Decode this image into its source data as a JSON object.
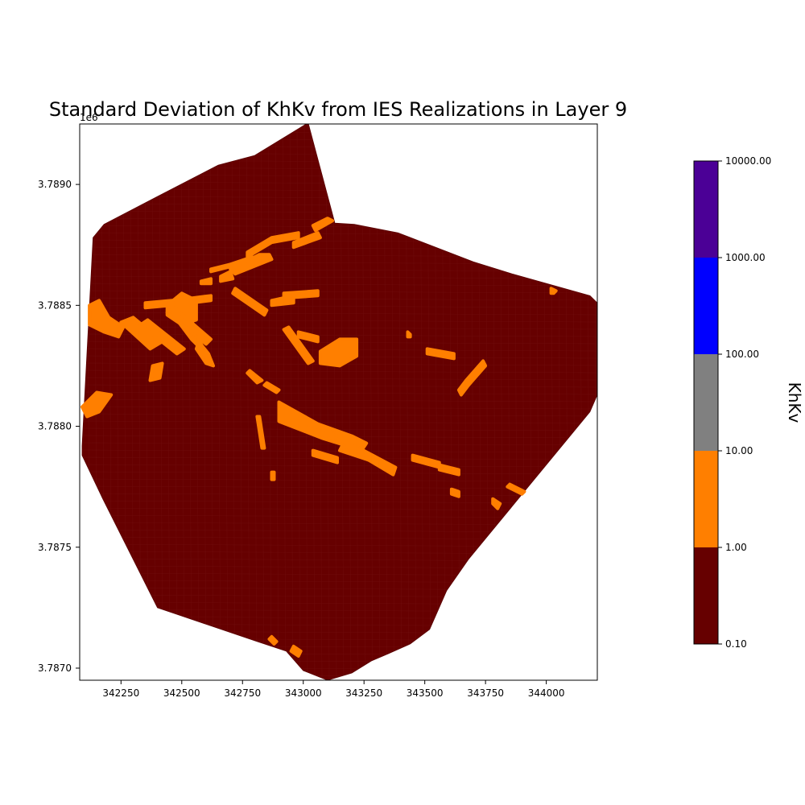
{
  "chart_data": {
    "type": "heatmap",
    "title": "Standard Deviation of KhKv from IES Realizations in Layer 9",
    "xlabel": "",
    "ylabel": "",
    "y_offset_label": "1e6",
    "xlim": [
      342080,
      344210
    ],
    "ylim": [
      3786950,
      3789250
    ],
    "x_ticks": [
      "342250",
      "342500",
      "342750",
      "343000",
      "343250",
      "343500",
      "343750",
      "344000"
    ],
    "x_tick_values": [
      342250,
      342500,
      342750,
      343000,
      343250,
      343500,
      343750,
      344000
    ],
    "y_ticks": [
      "3.7870",
      "3.7875",
      "3.7880",
      "3.7885",
      "3.7890"
    ],
    "y_tick_values": [
      3787000,
      3787500,
      3788000,
      3788500,
      3789000
    ],
    "colorbar": {
      "label": "KhKv",
      "tick_labels": [
        "0.10",
        "1.00",
        "10.00",
        "100.00",
        "1000.00",
        "10000.00"
      ],
      "bins": [
        {
          "from": 0.1,
          "to": 1,
          "color": "#660000"
        },
        {
          "from": 1,
          "to": 10,
          "color": "#ff7f00"
        },
        {
          "from": 10,
          "to": 100,
          "color": "#808080"
        },
        {
          "from": 100,
          "to": 1000,
          "color": "#0000ff"
        },
        {
          "from": 1000,
          "to": 10000,
          "color": "#4b0096"
        }
      ]
    },
    "domain_outline": [
      [
        342090,
        3787880
      ],
      [
        342090,
        3787920
      ],
      [
        342135,
        3788780
      ],
      [
        342180,
        3788835
      ],
      [
        342400,
        3788950
      ],
      [
        342650,
        3789080
      ],
      [
        342800,
        3789120
      ],
      [
        342980,
        3789230
      ],
      [
        343020,
        3789255
      ],
      [
        343130,
        3788840
      ],
      [
        343210,
        3788835
      ],
      [
        343390,
        3788800
      ],
      [
        343700,
        3788680
      ],
      [
        343860,
        3788630
      ],
      [
        344180,
        3788540
      ],
      [
        344210,
        3788510
      ],
      [
        344210,
        3788130
      ],
      [
        344180,
        3788060
      ],
      [
        343680,
        3787450
      ],
      [
        343590,
        3787320
      ],
      [
        343520,
        3787160
      ],
      [
        343440,
        3787100
      ],
      [
        343350,
        3787060
      ],
      [
        343280,
        3787030
      ],
      [
        343200,
        3786980
      ],
      [
        343100,
        3786950
      ],
      [
        343000,
        3786990
      ],
      [
        342930,
        3787070
      ],
      [
        342810,
        3787110
      ],
      [
        342400,
        3787250
      ],
      [
        342175,
        3787700
      ]
    ],
    "background_value_bin": "0.10–1.00",
    "high_value_bin": "1.00–10.00",
    "high_value_zones": [
      [
        [
          342120,
          3788500
        ],
        [
          342160,
          3788520
        ],
        [
          342200,
          3788450
        ],
        [
          342260,
          3788410
        ],
        [
          342240,
          3788370
        ],
        [
          342180,
          3788390
        ],
        [
          342120,
          3788420
        ]
      ],
      [
        [
          342250,
          3788430
        ],
        [
          342370,
          3788320
        ],
        [
          342420,
          3788350
        ],
        [
          342300,
          3788450
        ]
      ],
      [
        [
          342330,
          3788420
        ],
        [
          342480,
          3788300
        ],
        [
          342510,
          3788320
        ],
        [
          342360,
          3788440
        ]
      ],
      [
        [
          342350,
          3788510
        ],
        [
          342460,
          3788520
        ],
        [
          342460,
          3788500
        ],
        [
          342350,
          3788490
        ]
      ],
      [
        [
          342440,
          3788500
        ],
        [
          342500,
          3788550
        ],
        [
          342560,
          3788520
        ],
        [
          342560,
          3788440
        ],
        [
          342500,
          3788420
        ],
        [
          342440,
          3788460
        ]
      ],
      [
        [
          342540,
          3788530
        ],
        [
          342620,
          3788540
        ],
        [
          342620,
          3788520
        ],
        [
          342540,
          3788510
        ]
      ],
      [
        [
          342480,
          3788440
        ],
        [
          342540,
          3788360
        ],
        [
          342580,
          3788320
        ],
        [
          342600,
          3788300
        ],
        [
          342560,
          3788380
        ],
        [
          342510,
          3788450
        ]
      ],
      [
        [
          342570,
          3788350
        ],
        [
          342610,
          3788300
        ],
        [
          342630,
          3788250
        ],
        [
          342600,
          3788260
        ],
        [
          342560,
          3788320
        ]
      ],
      [
        [
          342440,
          3788470
        ],
        [
          342600,
          3788340
        ],
        [
          342620,
          3788360
        ],
        [
          342470,
          3788490
        ]
      ],
      [
        [
          342380,
          3788250
        ],
        [
          342420,
          3788260
        ],
        [
          342410,
          3788200
        ],
        [
          342370,
          3788190
        ]
      ],
      [
        [
          342090,
          3788080
        ],
        [
          342150,
          3788140
        ],
        [
          342210,
          3788130
        ],
        [
          342160,
          3788060
        ],
        [
          342110,
          3788040
        ]
      ],
      [
        [
          342580,
          3788600
        ],
        [
          342620,
          3788610
        ],
        [
          342620,
          3788590
        ],
        [
          342580,
          3788590
        ]
      ],
      [
        [
          342660,
          3788620
        ],
        [
          342700,
          3788640
        ],
        [
          342710,
          3788610
        ],
        [
          342660,
          3788600
        ]
      ],
      [
        [
          342620,
          3788650
        ],
        [
          342700,
          3788670
        ],
        [
          342790,
          3788700
        ],
        [
          342780,
          3788680
        ],
        [
          342620,
          3788640
        ]
      ],
      [
        [
          342770,
          3788720
        ],
        [
          342870,
          3788780
        ],
        [
          342980,
          3788800
        ],
        [
          342980,
          3788780
        ],
        [
          342870,
          3788760
        ],
        [
          342770,
          3788700
        ]
      ],
      [
        [
          342700,
          3788650
        ],
        [
          342820,
          3788710
        ],
        [
          342860,
          3788710
        ],
        [
          342870,
          3788690
        ],
        [
          342720,
          3788630
        ]
      ],
      [
        [
          343040,
          3788830
        ],
        [
          343100,
          3788860
        ],
        [
          343120,
          3788850
        ],
        [
          343050,
          3788810
        ]
      ],
      [
        [
          342960,
          3788760
        ],
        [
          343060,
          3788800
        ],
        [
          343070,
          3788780
        ],
        [
          342960,
          3788740
        ]
      ],
      [
        [
          342920,
          3788550
        ],
        [
          343060,
          3788560
        ],
        [
          343060,
          3788540
        ],
        [
          342920,
          3788530
        ]
      ],
      [
        [
          342870,
          3788520
        ],
        [
          342960,
          3788540
        ],
        [
          342960,
          3788510
        ],
        [
          342870,
          3788500
        ]
      ],
      [
        [
          342710,
          3788550
        ],
        [
          342840,
          3788460
        ],
        [
          342850,
          3788480
        ],
        [
          342720,
          3788570
        ]
      ],
      [
        [
          342920,
          3788400
        ],
        [
          343020,
          3788260
        ],
        [
          343040,
          3788270
        ],
        [
          342940,
          3788410
        ]
      ],
      [
        [
          342980,
          3788390
        ],
        [
          343060,
          3788370
        ],
        [
          343060,
          3788350
        ],
        [
          342980,
          3788370
        ]
      ],
      [
        [
          343070,
          3788310
        ],
        [
          343150,
          3788360
        ],
        [
          343220,
          3788360
        ],
        [
          343220,
          3788290
        ],
        [
          343150,
          3788250
        ],
        [
          343070,
          3788260
        ]
      ],
      [
        [
          342780,
          3788230
        ],
        [
          342830,
          3788190
        ],
        [
          342810,
          3788180
        ],
        [
          342770,
          3788220
        ]
      ],
      [
        [
          342850,
          3788180
        ],
        [
          342900,
          3788150
        ],
        [
          342890,
          3788140
        ],
        [
          342840,
          3788170
        ]
      ],
      [
        [
          342870,
          3787810
        ],
        [
          342880,
          3787810
        ],
        [
          342880,
          3787780
        ],
        [
          342870,
          3787780
        ]
      ],
      [
        [
          342820,
          3788040
        ],
        [
          342840,
          3787910
        ],
        [
          342830,
          3787910
        ],
        [
          342810,
          3788040
        ]
      ],
      [
        [
          342900,
          3788100
        ],
        [
          343060,
          3788010
        ],
        [
          343200,
          3787960
        ],
        [
          343260,
          3787930
        ],
        [
          343240,
          3787900
        ],
        [
          343080,
          3787950
        ],
        [
          342900,
          3788020
        ],
        [
          342900,
          3788060
        ]
      ],
      [
        [
          343000,
          3788000
        ],
        [
          343140,
          3787960
        ],
        [
          343130,
          3787950
        ],
        [
          342990,
          3787990
        ]
      ],
      [
        [
          343160,
          3787920
        ],
        [
          343280,
          3787880
        ],
        [
          343270,
          3787860
        ],
        [
          343150,
          3787900
        ]
      ],
      [
        [
          343040,
          3787900
        ],
        [
          343140,
          3787870
        ],
        [
          343140,
          3787850
        ],
        [
          343040,
          3787880
        ]
      ],
      [
        [
          343230,
          3787910
        ],
        [
          343380,
          3787830
        ],
        [
          343370,
          3787800
        ],
        [
          343220,
          3787890
        ]
      ],
      [
        [
          343200,
          3787920
        ],
        [
          343280,
          3787880
        ],
        [
          343270,
          3787860
        ],
        [
          343190,
          3787900
        ]
      ],
      [
        [
          343450,
          3787880
        ],
        [
          343560,
          3787850
        ],
        [
          343560,
          3787830
        ],
        [
          343450,
          3787860
        ]
      ],
      [
        [
          343560,
          3787840
        ],
        [
          343640,
          3787820
        ],
        [
          343640,
          3787800
        ],
        [
          343560,
          3787820
        ]
      ],
      [
        [
          343510,
          3788320
        ],
        [
          343620,
          3788300
        ],
        [
          343620,
          3788280
        ],
        [
          343510,
          3788300
        ]
      ],
      [
        [
          343430,
          3788390
        ],
        [
          343440,
          3788380
        ],
        [
          343440,
          3788370
        ],
        [
          343430,
          3788370
        ]
      ],
      [
        [
          343640,
          3788150
        ],
        [
          343670,
          3788190
        ],
        [
          343740,
          3788270
        ],
        [
          343750,
          3788250
        ],
        [
          343680,
          3788170
        ],
        [
          343650,
          3788130
        ]
      ],
      [
        [
          343610,
          3787740
        ],
        [
          343640,
          3787730
        ],
        [
          343640,
          3787710
        ],
        [
          343610,
          3787720
        ]
      ],
      [
        [
          343780,
          3787700
        ],
        [
          343810,
          3787680
        ],
        [
          343800,
          3787660
        ],
        [
          343780,
          3787680
        ]
      ],
      [
        [
          343850,
          3787760
        ],
        [
          343910,
          3787730
        ],
        [
          343900,
          3787720
        ],
        [
          343840,
          3787750
        ]
      ],
      [
        [
          344020,
          3788570
        ],
        [
          344040,
          3788560
        ],
        [
          344030,
          3788550
        ],
        [
          344020,
          3788550
        ]
      ],
      [
        [
          342870,
          3787130
        ],
        [
          342890,
          3787110
        ],
        [
          342880,
          3787100
        ],
        [
          342860,
          3787120
        ]
      ],
      [
        [
          342960,
          3787090
        ],
        [
          342990,
          3787070
        ],
        [
          342980,
          3787050
        ],
        [
          342950,
          3787070
        ]
      ]
    ]
  }
}
